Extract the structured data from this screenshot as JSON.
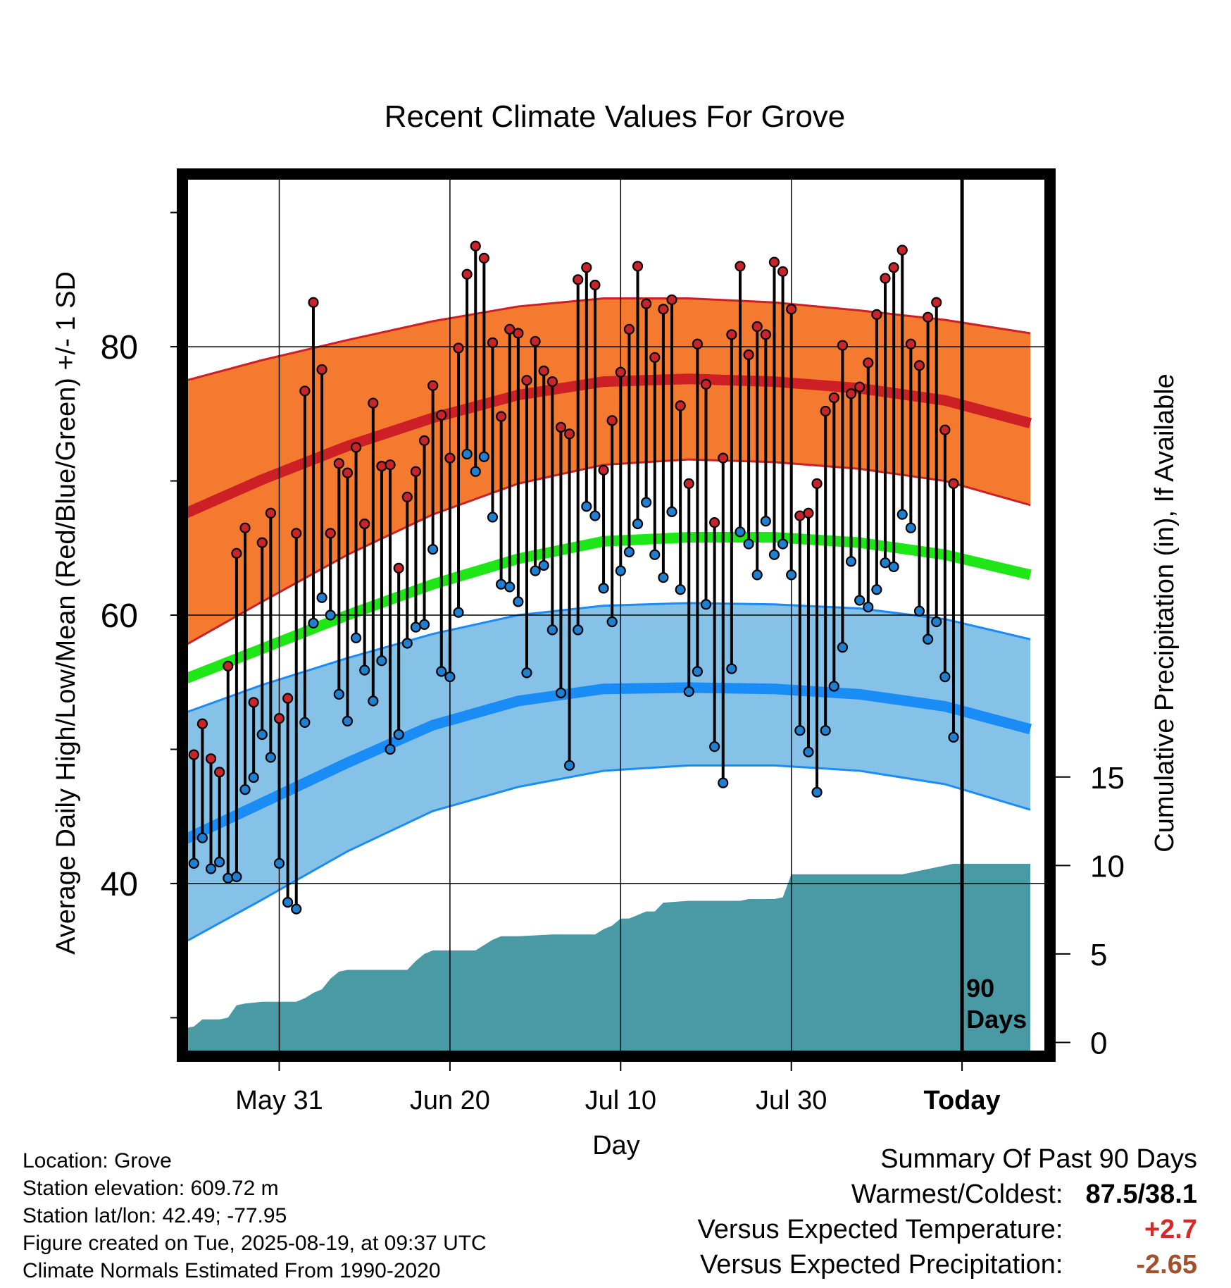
{
  "chart_data": {
    "type": "line",
    "title": "Recent Climate Values For Grove",
    "xlabel": "Day",
    "ylabel": "Average Daily High/Low/Mean (Red/Blue/Green) +/- 1 SD",
    "y2label": "Cumulative Precipitation (in), If Available",
    "ylim": [
      27.5,
      92.5
    ],
    "y2lim": [
      -0.5,
      48.8
    ],
    "y_ticks": [
      40,
      60,
      80
    ],
    "y2_ticks": [
      0,
      5,
      10,
      15
    ],
    "x_ticks": [
      {
        "day": 12,
        "label": "May 31"
      },
      {
        "day": 32,
        "label": "Jun 20"
      },
      {
        "day": 52,
        "label": "Jul 10"
      },
      {
        "day": 72,
        "label": "Jul 30"
      },
      {
        "day": 92,
        "label": "Today"
      }
    ],
    "today_day": 92,
    "days_annotation": [
      "90",
      "Days"
    ],
    "normals": {
      "days": [
        0,
        10,
        20,
        30,
        40,
        50,
        60,
        70,
        80,
        90,
        100
      ],
      "high_mean": [
        67.3,
        70.1,
        72.6,
        74.7,
        76.4,
        77.4,
        77.6,
        77.4,
        76.9,
        76.0,
        74.3
      ],
      "high_upper": [
        77.3,
        79.0,
        80.5,
        81.9,
        83.0,
        83.6,
        83.6,
        83.3,
        82.7,
        82.0,
        81.0
      ],
      "high_lower": [
        57.4,
        61.0,
        64.5,
        67.5,
        69.8,
        71.2,
        71.6,
        71.4,
        70.9,
        70.0,
        68.2
      ],
      "mean_mean": [
        55.0,
        57.5,
        60.0,
        62.3,
        64.2,
        65.5,
        65.8,
        65.8,
        65.4,
        64.5,
        63.0
      ],
      "low_mean": [
        43.0,
        46.0,
        49.0,
        51.8,
        53.6,
        54.5,
        54.6,
        54.5,
        54.1,
        53.2,
        51.5
      ],
      "low_upper": [
        52.5,
        54.8,
        56.8,
        58.6,
        60.0,
        60.7,
        60.9,
        60.8,
        60.5,
        59.7,
        58.2
      ],
      "low_lower": [
        35.3,
        38.8,
        42.4,
        45.4,
        47.2,
        48.4,
        48.8,
        48.8,
        48.4,
        47.4,
        45.5
      ]
    },
    "daily_high": [
      49.6,
      51.9,
      49.3,
      48.3,
      56.2,
      64.6,
      66.5,
      53.5,
      65.4,
      67.6,
      52.3,
      53.8,
      66.1,
      76.7,
      83.3,
      78.3,
      66.1,
      71.3,
      70.6,
      72.5,
      66.8,
      75.8,
      71.1,
      71.2,
      63.5,
      68.8,
      70.7,
      73.0,
      77.1,
      74.9,
      71.7,
      79.9,
      85.4,
      87.5,
      86.6,
      80.3,
      74.8,
      81.3,
      81.0,
      77.5,
      80.4,
      78.2,
      77.4,
      74.0,
      73.5,
      85.0,
      85.9,
      84.6,
      70.8,
      74.5,
      78.1,
      81.3,
      86.0,
      83.2,
      79.2,
      82.8,
      83.5,
      75.6,
      69.8,
      80.2,
      77.2,
      66.9,
      71.7,
      80.9,
      86.0,
      79.4,
      81.5,
      80.9,
      86.3,
      85.6,
      82.8,
      67.4,
      67.6,
      69.8,
      75.2,
      76.2,
      80.1,
      76.5,
      77.0,
      78.8,
      82.4,
      85.1,
      85.9,
      87.2,
      80.2,
      78.6,
      82.2,
      83.3,
      73.8,
      69.8
    ],
    "daily_low": [
      41.5,
      43.4,
      41.1,
      41.6,
      40.4,
      40.5,
      47.0,
      47.9,
      51.1,
      49.4,
      41.5,
      38.6,
      38.1,
      52.0,
      59.4,
      61.3,
      60.0,
      54.1,
      52.1,
      58.3,
      55.9,
      53.6,
      56.6,
      50.0,
      51.1,
      57.9,
      59.1,
      59.3,
      64.9,
      55.8,
      55.4,
      60.2,
      72.0,
      70.7,
      71.8,
      67.3,
      62.3,
      62.1,
      61.0,
      55.7,
      63.3,
      63.7,
      58.9,
      54.2,
      48.8,
      58.9,
      68.1,
      67.4,
      62.0,
      59.5,
      63.3,
      64.7,
      66.8,
      68.4,
      64.5,
      62.8,
      67.7,
      61.9,
      54.3,
      55.8,
      60.8,
      50.2,
      47.5,
      56.0,
      66.2,
      65.3,
      63.0,
      67.0,
      64.5,
      65.3,
      63.0,
      51.4,
      49.8,
      46.8,
      51.4,
      54.7,
      57.6,
      64.0,
      61.1,
      60.6,
      61.9,
      63.9,
      63.6,
      67.5,
      66.5,
      60.3,
      58.2,
      59.5,
      55.4,
      50.9
    ],
    "precip": {
      "days": [
        0,
        1,
        2,
        3,
        5,
        6,
        7,
        8,
        10,
        12,
        14,
        15,
        16,
        17,
        18,
        19,
        20,
        21,
        23,
        25,
        27,
        28,
        29,
        30,
        31,
        33,
        35,
        37,
        38,
        40,
        44,
        46,
        48,
        49,
        50,
        51,
        52,
        53,
        55,
        56,
        57,
        60,
        64,
        66,
        67,
        70,
        71,
        72,
        73,
        74,
        75,
        78,
        80,
        82,
        85,
        90,
        91,
        92,
        100
      ],
      "values": [
        0.5,
        0.8,
        0.9,
        1.3,
        1.3,
        1.4,
        2.1,
        2.2,
        2.3,
        2.3,
        2.3,
        2.5,
        2.8,
        3.0,
        3.6,
        4.0,
        4.1,
        4.1,
        4.1,
        4.1,
        4.1,
        4.6,
        5.0,
        5.2,
        5.2,
        5.2,
        5.2,
        5.8,
        6.0,
        6.0,
        6.1,
        6.1,
        6.1,
        6.1,
        6.4,
        6.6,
        7.0,
        7.0,
        7.4,
        7.4,
        7.9,
        8.0,
        8.0,
        8.0,
        8.1,
        8.1,
        8.2,
        9.5,
        9.5,
        9.5,
        9.5,
        9.5,
        9.5,
        9.5,
        9.5,
        10.0,
        10.1,
        10.1,
        10.1
      ]
    }
  },
  "info": {
    "location": "Location: Grove",
    "elevation": "Station elevation: 609.72 m",
    "latlon": "Station lat/lon: 42.49; -77.95",
    "created": "Figure created on Tue, 2025-08-19, at 09:37 UTC",
    "normals": "Climate Normals Estimated From 1990-2020"
  },
  "summary": {
    "heading": "Summary Of Past 90 Days",
    "warmest_label": "Warmest/Coldest:",
    "warmest_value": "87.5/38.1",
    "temp_label": "Versus Expected Temperature:",
    "temp_value": "+2.7",
    "precip_label": "Versus Expected Precipitation:",
    "precip_value": "-2.65"
  },
  "colors": {
    "high_band": "#f47a30",
    "high_line": "#cc1f26",
    "mean_line": "#1ee617",
    "low_band": "#86c2e8",
    "low_line": "#1a8cf5",
    "precip": "#4a9aa5",
    "high_dot": "#c8242a",
    "low_dot": "#1f7fd1",
    "temp_value": "#d42a2a",
    "precip_value": "#a0522d"
  }
}
